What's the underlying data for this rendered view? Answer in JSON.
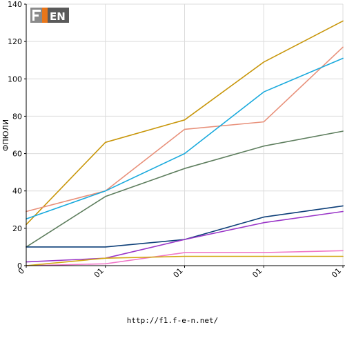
{
  "footer_url": "http://f1.f-e-n.net/",
  "logo_text": "F1EN",
  "chart_data": {
    "type": "line",
    "title": "",
    "xlabel": "",
    "ylabel": "ФПЮЛИ",
    "ylim": [
      0,
      140
    ],
    "yticks": [
      0,
      20,
      40,
      60,
      80,
      100,
      120,
      140
    ],
    "categories": [
      "0",
      "01",
      "01",
      "01",
      "01"
    ],
    "grid": true,
    "legend": "none",
    "series": [
      {
        "color": "#c8960a",
        "values": [
          22,
          66,
          78,
          109,
          131
        ]
      },
      {
        "color": "#e8907a",
        "values": [
          29,
          40,
          73,
          77,
          117
        ]
      },
      {
        "color": "#1aaadd",
        "values": [
          25,
          40,
          60,
          93,
          111
        ]
      },
      {
        "color": "#5e7e5e",
        "values": [
          10,
          37,
          52,
          64,
          72
        ]
      },
      {
        "color": "#0c3e78",
        "values": [
          10,
          10,
          14,
          26,
          32
        ]
      },
      {
        "color": "#9a36c8",
        "values": [
          2,
          4,
          14,
          23,
          29
        ]
      },
      {
        "color": "#f078c8",
        "values": [
          0,
          1,
          7,
          7,
          8
        ]
      },
      {
        "color": "#d2a814",
        "values": [
          0,
          4,
          5,
          5,
          5
        ]
      }
    ]
  }
}
